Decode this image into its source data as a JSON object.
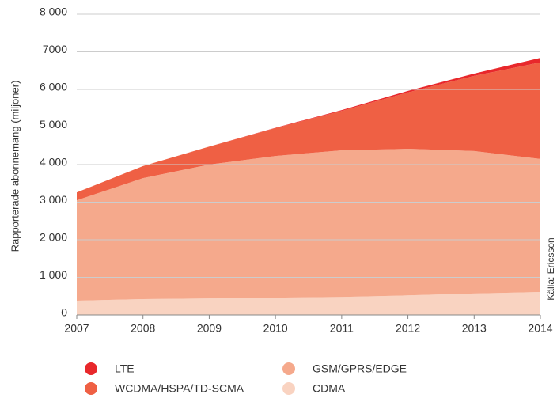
{
  "chart_data": {
    "type": "area",
    "stacked": true,
    "y_label": "Rapporterade abonnemang (miljoner)",
    "annotation": "Källa: Ericsson",
    "x": [
      2007,
      2008,
      2009,
      2010,
      2011,
      2012,
      2013,
      2014
    ],
    "xlim": [
      2007,
      2014
    ],
    "xticks": [
      2007,
      2008,
      2009,
      2010,
      2011,
      2012,
      2013,
      2014
    ],
    "ylim": [
      0,
      8000
    ],
    "yticks": [
      0,
      {
        "value": 1000,
        "label": "1 000"
      },
      {
        "value": 2000,
        "label": "2 000"
      },
      {
        "value": 3000,
        "label": "3 000"
      },
      {
        "value": 4000,
        "label": "4 000"
      },
      {
        "value": 5000,
        "label": "5 000"
      },
      {
        "value": 6000,
        "label": "6 000"
      },
      7000,
      {
        "value": 8000,
        "label": "8 000"
      }
    ],
    "grid": true,
    "legend": "bottom",
    "series": [
      {
        "name": "LTE",
        "color": "#e8282b",
        "values": [
          0,
          0,
          0,
          10,
          20,
          40,
          60,
          120
        ]
      },
      {
        "name": "WCDMA/HSPA/TD-SCMA",
        "color": "#ef6044",
        "values": [
          210,
          320,
          480,
          740,
          1050,
          1500,
          2000,
          2570
        ]
      },
      {
        "name": "GSM/GPRS/EDGE",
        "color": "#f5a98c",
        "values": [
          2670,
          3220,
          3560,
          3770,
          3900,
          3900,
          3790,
          3540
        ]
      },
      {
        "name": "CDMA",
        "color": "#f9d3c1",
        "values": [
          380,
          420,
          440,
          460,
          480,
          520,
          570,
          610
        ]
      }
    ]
  }
}
